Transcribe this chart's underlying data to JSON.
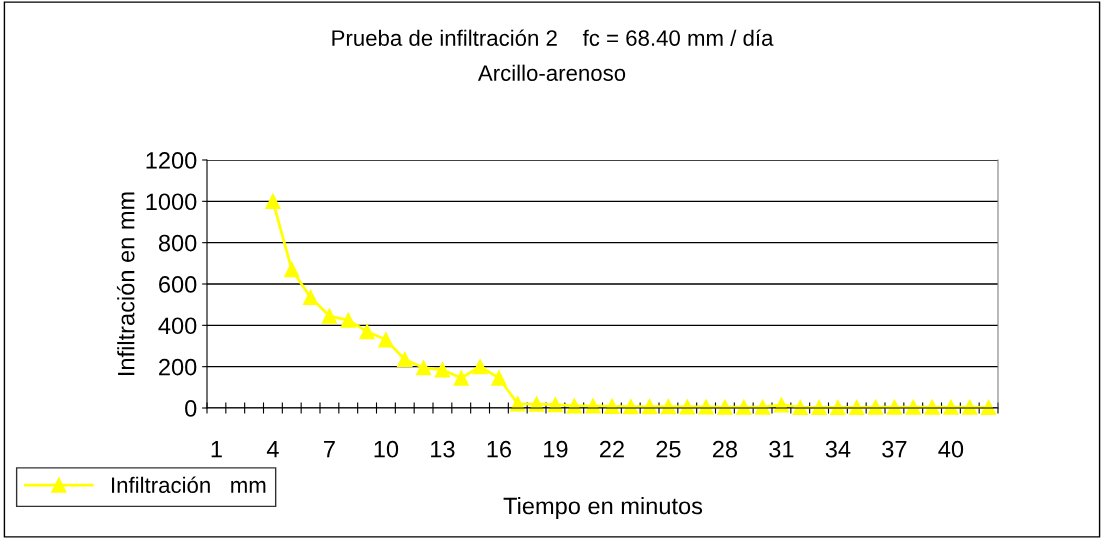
{
  "chart_data": {
    "type": "line",
    "title": "Prueba de infiltración 2    fc = 68.40 mm / día",
    "subtitle": "Arcillo-arenoso",
    "xlabel": "Tiempo en minutos",
    "ylabel": "Infiltración en mm",
    "categories": [
      "1",
      null,
      null,
      "4",
      null,
      null,
      "7",
      null,
      null,
      "10",
      null,
      null,
      "13",
      null,
      null,
      "16",
      null,
      null,
      "19",
      null,
      null,
      "22",
      null,
      null,
      "25",
      null,
      null,
      "28",
      null,
      null,
      "31",
      null,
      null,
      "34",
      null,
      null,
      "37",
      null,
      null,
      "40",
      null,
      null
    ],
    "series": [
      {
        "name": "Infiltración   mm",
        "color": "#ffff00",
        "values": [
          null,
          null,
          null,
          1000,
          670,
          535,
          445,
          425,
          370,
          330,
          235,
          195,
          185,
          145,
          200,
          145,
          20,
          19,
          16,
          10,
          10,
          8,
          7,
          7,
          7,
          5,
          5,
          4,
          4,
          4,
          15,
          3,
          3,
          3,
          3,
          4,
          4,
          4,
          4,
          4,
          4,
          3
        ]
      }
    ],
    "ylim": [
      0,
      1200
    ],
    "yticks": [
      0,
      200,
      400,
      600,
      800,
      1000,
      1200
    ],
    "grid": "y",
    "legend": "bottom left",
    "marker": "triangle",
    "line_style": "solid"
  }
}
